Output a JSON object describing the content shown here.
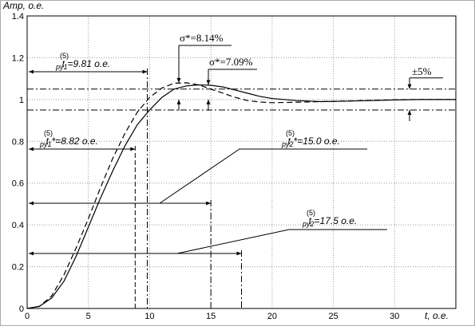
{
  "chart_data": {
    "type": "line",
    "ylabel": "Amp, o.e.",
    "xlabel": "t, o.e.",
    "x": [
      0,
      1,
      2,
      3,
      4,
      5,
      6,
      7,
      8,
      9,
      10,
      11,
      12,
      13,
      14,
      15,
      16,
      17,
      18,
      19,
      20,
      22,
      24,
      26,
      28,
      30,
      32,
      35
    ],
    "series": [
      {
        "color": "#000000",
        "style": "solid",
        "values": [
          0,
          0.01,
          0.05,
          0.13,
          0.25,
          0.39,
          0.53,
          0.66,
          0.78,
          0.88,
          0.95,
          1.01,
          1.05,
          1.065,
          1.07,
          1.068,
          1.06,
          1.045,
          1.03,
          1.015,
          1.005,
          0.995,
          0.99,
          0.992,
          0.995,
          0.998,
          1.0,
          1.0
        ]
      },
      {
        "color": "#000000",
        "style": "dashed",
        "values": [
          0,
          0.01,
          0.06,
          0.16,
          0.29,
          0.43,
          0.58,
          0.72,
          0.84,
          0.94,
          1.01,
          1.055,
          1.078,
          1.08,
          1.07,
          1.05,
          1.03,
          1.01,
          0.995,
          0.988,
          0.985,
          0.987,
          0.99,
          0.993,
          0.996,
          0.999,
          1.0,
          1.0
        ]
      }
    ],
    "xlim": [
      0,
      35
    ],
    "ylim": [
      0,
      1.4
    ],
    "xticks": [
      0,
      5,
      10,
      15,
      20,
      25,
      30
    ],
    "yticks": [
      0,
      0.2,
      0.4,
      0.6,
      0.8,
      1,
      1.2,
      1.4
    ],
    "grid": true,
    "band": [
      0.95,
      1.05
    ],
    "band_label": "±5%",
    "overshoots": [
      "σ*=8.14%",
      "σ*=7.09%"
    ],
    "annotations": [
      {
        "base": "t",
        "sup": "(5)",
        "sub": "py1",
        "text": "=9.81 o.e.",
        "value": 9.81
      },
      {
        "base": "t",
        "sup": "(5)",
        "sub": "py1",
        "text": "*=8.82 o.e.",
        "value": 8.82
      },
      {
        "base": "t",
        "sup": "(5)",
        "sub": "py2",
        "text": "*=15.0 o.e.",
        "value": 15.0
      },
      {
        "base": "t",
        "sup": "(5)",
        "sub": "py2",
        "text": "=17.5 o.e.",
        "value": 17.5
      }
    ]
  }
}
